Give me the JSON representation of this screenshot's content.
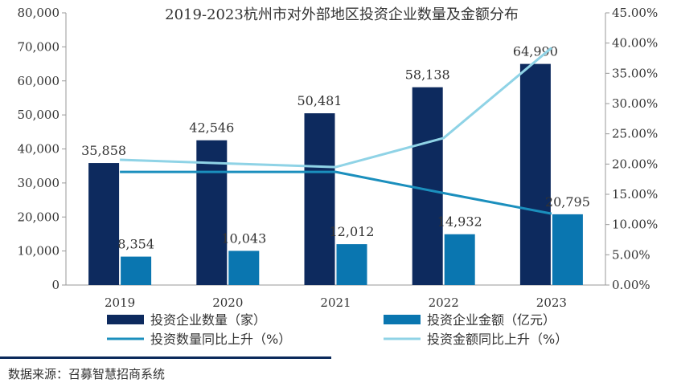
{
  "chart_data": {
    "type": "bar",
    "title": "2019-2023杭州市对外部地区投资企业数量及金额分布",
    "categories": [
      "2019",
      "2020",
      "2021",
      "2022",
      "2023"
    ],
    "series": [
      {
        "name": "投资企业数量（家）",
        "kind": "bar",
        "axis": "left",
        "color": "#0d2a5e",
        "values": [
          35858,
          42546,
          50481,
          58138,
          64990
        ],
        "labels": [
          "35,858",
          "42,546",
          "50,481",
          "58,138",
          "64,990"
        ]
      },
      {
        "name": "投资企业金额（亿元）",
        "kind": "bar",
        "axis": "left",
        "color": "#0a76b0",
        "values": [
          8354,
          10043,
          12012,
          14932,
          20795
        ],
        "labels": [
          "8,354",
          "10,043",
          "12,012",
          "14,932",
          "20,795"
        ]
      },
      {
        "name": "投资数量同比上升（%）",
        "kind": "line",
        "axis": "right",
        "color": "#1b8fbd",
        "values": [
          18.7,
          18.7,
          18.7,
          15.2,
          11.8
        ]
      },
      {
        "name": "投资金额同比上升（%）",
        "kind": "line",
        "axis": "right",
        "color": "#8fd3e6",
        "values": [
          20.7,
          20.1,
          19.5,
          24.3,
          39.2
        ]
      }
    ],
    "y_left": {
      "min": 0,
      "max": 80000,
      "step": 10000,
      "ticks": [
        "0",
        "10,000",
        "20,000",
        "30,000",
        "40,000",
        "50,000",
        "60,000",
        "70,000",
        "80,000"
      ]
    },
    "y_right": {
      "min": 0,
      "max": 45,
      "step": 5,
      "ticks": [
        "0.00%",
        "5.00%",
        "10.00%",
        "15.00%",
        "20.00%",
        "25.00%",
        "30.00%",
        "35.00%",
        "40.00%",
        "45.00%"
      ]
    },
    "grid": false,
    "legend_position": "bottom"
  },
  "source": "数据来源：召募智慧招商系统"
}
